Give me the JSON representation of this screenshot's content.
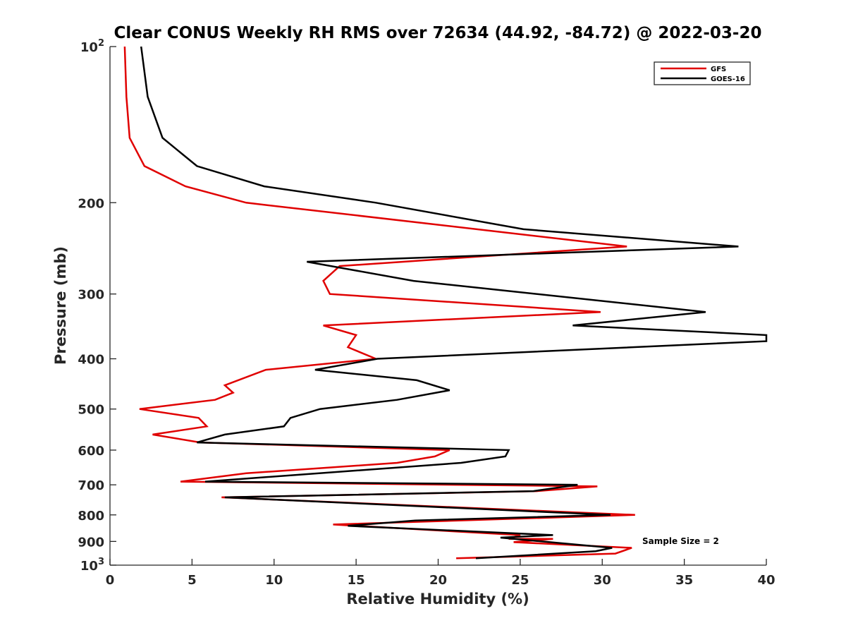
{
  "chart_data": {
    "type": "line",
    "title": "Clear CONUS Weekly RH RMS over 72634 (44.92, -84.72) @ 2022-03-20",
    "xlabel": "Relative Humidity (%)",
    "ylabel": "Pressure (mb)",
    "xlim": [
      0,
      40
    ],
    "ylim": [
      100,
      1000
    ],
    "yscale": "log",
    "y_reversed": true,
    "grid": false,
    "legend_location": "top-right",
    "x_ticks": [
      {
        "value": 0,
        "label": "0"
      },
      {
        "value": 5,
        "label": "5"
      },
      {
        "value": 10,
        "label": "10"
      },
      {
        "value": 15,
        "label": "15"
      },
      {
        "value": 20,
        "label": "20"
      },
      {
        "value": 25,
        "label": "25"
      },
      {
        "value": 30,
        "label": "30"
      },
      {
        "value": 35,
        "label": "35"
      },
      {
        "value": 40,
        "label": "40"
      }
    ],
    "y_ticks": [
      {
        "value": 100,
        "label": "10",
        "sup": "2"
      },
      {
        "value": 200,
        "label": "200",
        "sup": ""
      },
      {
        "value": 300,
        "label": "300",
        "sup": ""
      },
      {
        "value": 400,
        "label": "400",
        "sup": ""
      },
      {
        "value": 500,
        "label": "500",
        "sup": ""
      },
      {
        "value": 600,
        "label": "600",
        "sup": ""
      },
      {
        "value": 700,
        "label": "700",
        "sup": ""
      },
      {
        "value": 800,
        "label": "800",
        "sup": ""
      },
      {
        "value": 900,
        "label": "900",
        "sup": ""
      },
      {
        "value": 1000,
        "label": "10",
        "sup": "3"
      }
    ],
    "annotation": "Sample Size = 2",
    "series": [
      {
        "name": "GFS",
        "color": "#e00000",
        "points": [
          [
            0.9,
            100
          ],
          [
            1.0,
            125
          ],
          [
            1.2,
            150
          ],
          [
            2.1,
            170
          ],
          [
            4.6,
            186
          ],
          [
            8.3,
            200
          ],
          [
            31.5,
            243
          ],
          [
            14.0,
            265
          ],
          [
            13.0,
            283
          ],
          [
            13.4,
            300
          ],
          [
            29.9,
            325
          ],
          [
            13.0,
            345
          ],
          [
            15.0,
            360
          ],
          [
            14.5,
            380
          ],
          [
            16.2,
            400
          ],
          [
            9.5,
            420
          ],
          [
            7.0,
            450
          ],
          [
            7.5,
            465
          ],
          [
            6.4,
            480
          ],
          [
            1.8,
            500
          ],
          [
            5.4,
            520
          ],
          [
            5.9,
            540
          ],
          [
            2.6,
            560
          ],
          [
            5.5,
            580
          ],
          [
            20.7,
            600
          ],
          [
            19.8,
            617
          ],
          [
            17.5,
            635
          ],
          [
            8.3,
            665
          ],
          [
            4.3,
            690
          ],
          [
            29.7,
            705
          ],
          [
            26.0,
            720
          ],
          [
            6.8,
            740
          ],
          [
            17.5,
            765
          ],
          [
            32.0,
            800
          ],
          [
            13.6,
            835
          ],
          [
            25.0,
            875
          ],
          [
            24.3,
            890
          ],
          [
            27.0,
            890
          ],
          [
            24.6,
            903
          ],
          [
            31.8,
            926
          ],
          [
            30.8,
            950
          ],
          [
            21.1,
            970
          ]
        ]
      },
      {
        "name": "GOES-16",
        "color": "#000000",
        "points": [
          [
            1.9,
            100
          ],
          [
            2.3,
            125
          ],
          [
            3.2,
            150
          ],
          [
            5.3,
            170
          ],
          [
            9.4,
            186
          ],
          [
            16.2,
            200
          ],
          [
            25.2,
            225
          ],
          [
            38.3,
            243
          ],
          [
            12.0,
            260
          ],
          [
            18.5,
            283
          ],
          [
            36.3,
            325
          ],
          [
            28.2,
            345
          ],
          [
            40.0,
            360
          ],
          [
            40.0,
            370
          ],
          [
            16.3,
            400
          ],
          [
            12.5,
            420
          ],
          [
            18.7,
            440
          ],
          [
            20.7,
            460
          ],
          [
            17.5,
            480
          ],
          [
            12.8,
            500
          ],
          [
            11.0,
            520
          ],
          [
            10.6,
            540
          ],
          [
            7.0,
            560
          ],
          [
            5.3,
            580
          ],
          [
            24.3,
            600
          ],
          [
            24.1,
            617
          ],
          [
            21.4,
            635
          ],
          [
            5.8,
            690
          ],
          [
            28.5,
            700
          ],
          [
            25.8,
            720
          ],
          [
            7.0,
            740
          ],
          [
            30.5,
            800
          ],
          [
            18.6,
            820
          ],
          [
            14.5,
            840
          ],
          [
            27.0,
            875
          ],
          [
            23.8,
            885
          ],
          [
            30.6,
            926
          ],
          [
            29.6,
            940
          ],
          [
            22.3,
            970
          ]
        ]
      }
    ]
  }
}
